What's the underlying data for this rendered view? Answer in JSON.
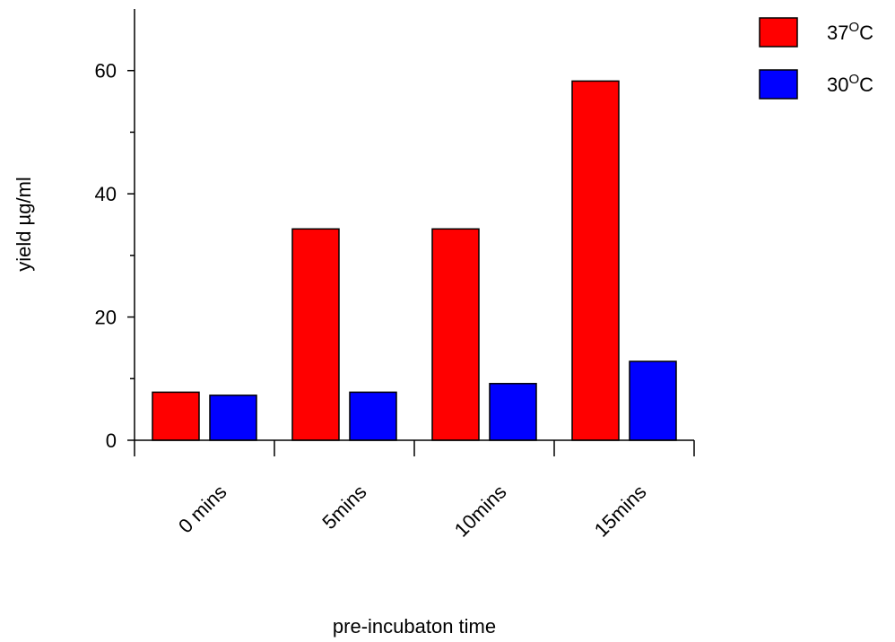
{
  "chart_data": {
    "type": "bar",
    "categories": [
      "0 mins",
      "5mins",
      "10mins",
      "15mins"
    ],
    "series": [
      {
        "name": "37",
        "color": "#ff0000",
        "values": [
          7.8,
          34.3,
          34.3,
          58.3
        ]
      },
      {
        "name": "30",
        "color": "#0000ff",
        "values": [
          7.3,
          7.8,
          9.2,
          12.8
        ]
      }
    ],
    "legend_unit_superscript": "O",
    "legend_unit": "C",
    "xlabel": "pre-incubaton time",
    "ylabel": "yield µg/ml",
    "ylim": [
      0,
      70
    ],
    "yticks": [
      0,
      20,
      40,
      60
    ],
    "grid": false,
    "legend_position": "top-right"
  }
}
